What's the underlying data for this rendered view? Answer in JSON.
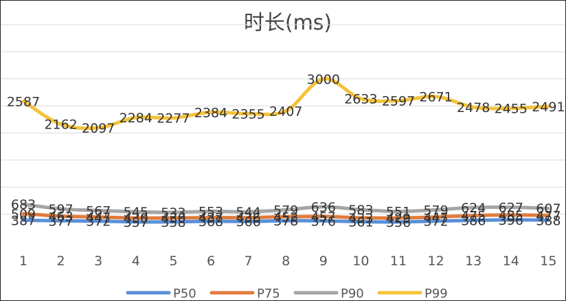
{
  "chart_data": {
    "type": "line",
    "title": "时长(ms)",
    "xlabel": "",
    "ylabel": "",
    "categories": [
      "1",
      "2",
      "3",
      "4",
      "5",
      "6",
      "7",
      "8",
      "9",
      "10",
      "11",
      "12",
      "13",
      "14",
      "15"
    ],
    "ylim": [
      0,
      4000
    ],
    "grid": true,
    "legend_position": "bottom",
    "series": [
      {
        "name": "P50",
        "color": "#5b8fd6",
        "values": [
          387,
          377,
          372,
          357,
          358,
          368,
          366,
          378,
          376,
          361,
          356,
          372,
          386,
          396,
          388
        ]
      },
      {
        "name": "P75",
        "color": "#e07b3c",
        "values": [
          509,
          463,
          447,
          430,
          430,
          437,
          436,
          452,
          457,
          433,
          429,
          447,
          475,
          485,
          477
        ]
      },
      {
        "name": "P90",
        "color": "#a5a5a5",
        "values": [
          683,
          597,
          567,
          545,
          533,
          553,
          544,
          579,
          636,
          583,
          551,
          579,
          624,
          627,
          607
        ]
      },
      {
        "name": "P99",
        "color": "#f4c23b",
        "values": [
          2587,
          2162,
          2097,
          2284,
          2277,
          2384,
          2355,
          2407,
          3000,
          2633,
          2597,
          2671,
          2478,
          2455,
          2491
        ]
      }
    ]
  }
}
